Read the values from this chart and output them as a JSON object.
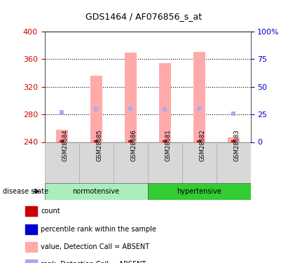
{
  "title": "GDS1464 / AF076856_s_at",
  "samples": [
    "GSM28684",
    "GSM28685",
    "GSM28686",
    "GSM28681",
    "GSM28682",
    "GSM28683"
  ],
  "bar_values": [
    258,
    336,
    370,
    354,
    371,
    247
  ],
  "bar_bottom": 240,
  "rank_markers": [
    283,
    287,
    288,
    287,
    288,
    281
  ],
  "ylim": [
    240,
    400
  ],
  "yticks_left": [
    240,
    280,
    320,
    360,
    400
  ],
  "yticks_right": [
    0,
    25,
    50,
    75,
    100
  ],
  "bar_color": "#ffaaaa",
  "rank_color": "#aaaaee",
  "count_color": "#cc0000",
  "percentile_color": "#0000cc",
  "normotensive_color": "#aaeebb",
  "hypertensive_color": "#33cc33",
  "normotensive_label": "normotensive",
  "hypertensive_label": "hypertensive",
  "disease_state_label": "disease state",
  "legend_items": [
    {
      "label": "count",
      "color": "#cc0000"
    },
    {
      "label": "percentile rank within the sample",
      "color": "#0000cc"
    },
    {
      "label": "value, Detection Call = ABSENT",
      "color": "#ffaaaa"
    },
    {
      "label": "rank, Detection Call = ABSENT",
      "color": "#aaaaee"
    }
  ],
  "right_axis_color": "#0000cc",
  "left_axis_color": "#cc0000",
  "grid_yticks": [
    280,
    320,
    360
  ]
}
